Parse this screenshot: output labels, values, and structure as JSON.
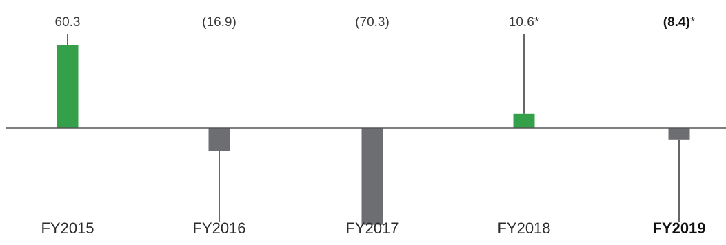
{
  "chart_data": {
    "type": "bar",
    "categories": [
      "FY2015",
      "FY2016",
      "FY2017",
      "FY2018",
      "FY2019"
    ],
    "values": [
      60.3,
      -16.9,
      -70.3,
      10.6,
      -8.4
    ],
    "value_labels": [
      "60.3",
      "(16.9)",
      "(70.3)",
      "10.6",
      "(8.4)"
    ],
    "value_label_suffix": [
      "",
      "",
      "",
      "*",
      "*"
    ],
    "bold_index": 4,
    "title": "",
    "xlabel": "",
    "ylabel": "",
    "grid": false,
    "legend": "none",
    "colors": {
      "positive": "#34a04a",
      "negative": "#6d6e71",
      "axis": "#555555",
      "leader": "#666666"
    }
  }
}
